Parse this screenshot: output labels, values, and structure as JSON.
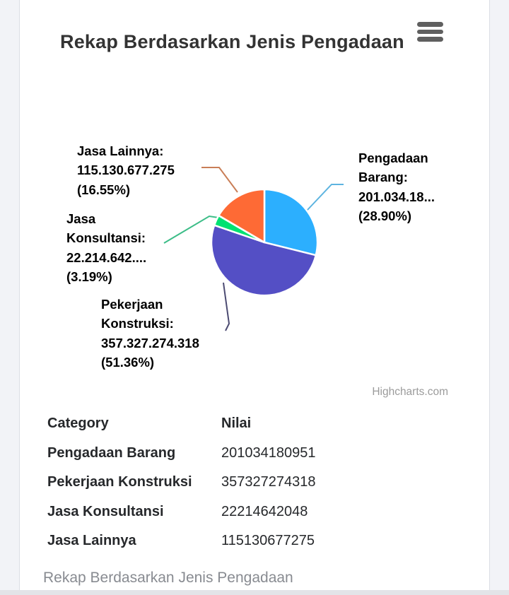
{
  "theme": {
    "page_bg": "#f2f3f7",
    "card_bg": "#ffffff",
    "title_color": "#333333",
    "label_color": "#000000",
    "credit_color": "#9b9b9b",
    "table_text_color": "#26282b",
    "footer_text_color": "#888b91"
  },
  "header": {
    "title": "Rekap Berdasarkan Jenis Pengadaan"
  },
  "chart_data": {
    "type": "pie",
    "title": "Rekap Berdasarkan Jenis Pengadaan",
    "legend": false,
    "start_angle_deg": 0,
    "direction": "clockwise",
    "data_label_format": "{category}: {value} ({percent}%)",
    "series": [
      {
        "name": "Nilai",
        "points": [
          {
            "category": "Pengadaan Barang",
            "value": 201034180951,
            "percent": 28.9,
            "color": "#2caffe",
            "connector_color": "#5db4e0"
          },
          {
            "category": "Pekerjaan Konstruksi",
            "value": 357327274318,
            "percent": 51.36,
            "color": "#544fc5",
            "connector_color": "#4c4b72"
          },
          {
            "category": "Jasa Konsultansi",
            "value": 22214642048,
            "percent": 3.19,
            "color": "#00e272",
            "connector_color": "#3dbd88"
          },
          {
            "category": "Jasa Lainnya",
            "value": 115130677275,
            "percent": 16.55,
            "color": "#fe6a35",
            "connector_color": "#c97e57"
          }
        ]
      }
    ]
  },
  "data_labels": {
    "pengadaan_barang": {
      "lines": [
        "Pengadaan",
        "Barang:",
        "201.034.18...",
        "(28.90%)"
      ]
    },
    "pekerjaan_konstruksi": {
      "lines": [
        "Pekerjaan",
        "Konstruksi:",
        "357.327.274.318",
        "(51.36%)"
      ]
    },
    "jasa_konsultansi": {
      "lines": [
        "Jasa",
        "Konsultansi:",
        "22.214.642....",
        "(3.19%)"
      ]
    },
    "jasa_lainnya": {
      "lines": [
        "Jasa Lainnya:",
        "115.130.677.275",
        "(16.55%)"
      ]
    }
  },
  "credit": {
    "label": "Highcharts.com"
  },
  "table": {
    "headers": [
      "Category",
      "Nilai"
    ],
    "rows": [
      {
        "category": "Pengadaan Barang",
        "value": "201034180951"
      },
      {
        "category": "Pekerjaan Konstruksi",
        "value": "357327274318"
      },
      {
        "category": "Jasa Konsultansi",
        "value": "22214642048"
      },
      {
        "category": "Jasa Lainnya",
        "value": "115130677275"
      }
    ]
  },
  "footer": {
    "section_title": "Rekap Berdasarkan Jenis Pengadaan"
  }
}
